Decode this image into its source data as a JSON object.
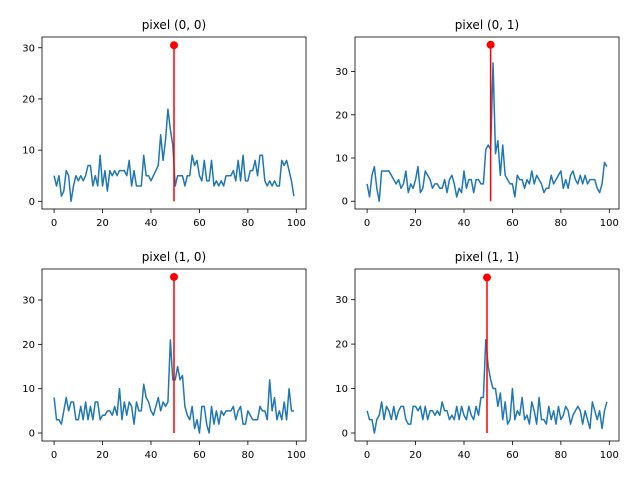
{
  "chart_data": [
    {
      "type": "line",
      "title": "pixel (0, 0)",
      "xlim": [
        -5,
        104
      ],
      "ylim": [
        -1.5,
        32.1
      ],
      "xticks": [
        0,
        20,
        40,
        60,
        80,
        100
      ],
      "yticks": [
        0,
        10,
        20,
        30
      ],
      "series": [
        {
          "color": "#1f77b4",
          "x": [
            0,
            1,
            2,
            3,
            4,
            5,
            6,
            7,
            8,
            9,
            10,
            11,
            12,
            13,
            14,
            15,
            16,
            17,
            18,
            19,
            20,
            21,
            22,
            23,
            24,
            25,
            26,
            27,
            28,
            29,
            30,
            31,
            32,
            33,
            34,
            35,
            36,
            37,
            38,
            39,
            40,
            41,
            42,
            43,
            44,
            45,
            46,
            47,
            48,
            49,
            50,
            51,
            52,
            53,
            54,
            55,
            56,
            57,
            58,
            59,
            60,
            61,
            62,
            63,
            64,
            65,
            66,
            67,
            68,
            69,
            70,
            71,
            72,
            73,
            74,
            75,
            76,
            77,
            78,
            79,
            80,
            81,
            82,
            83,
            84,
            85,
            86,
            87,
            88,
            89,
            90,
            91,
            92,
            93,
            94,
            95,
            96,
            97,
            98,
            99
          ],
          "values": [
            5,
            3,
            5,
            1,
            2,
            6,
            5,
            0,
            3,
            5,
            4,
            5,
            4,
            5,
            7,
            7,
            3,
            5,
            3,
            9,
            3,
            6,
            2,
            6,
            5,
            6,
            5,
            6,
            6,
            6,
            5,
            8,
            3,
            6,
            3,
            3,
            3,
            9,
            5,
            5,
            4,
            5,
            6,
            7,
            13,
            8,
            12,
            18,
            14,
            11,
            3,
            5,
            5,
            5,
            3,
            5,
            5,
            9,
            7,
            8,
            5,
            4,
            8,
            4,
            4,
            8,
            3,
            4,
            3,
            4,
            3,
            5,
            5,
            5,
            6,
            4,
            8,
            4,
            9,
            4,
            4,
            6,
            6,
            8,
            5,
            9,
            9,
            4,
            3,
            4,
            3,
            4,
            3,
            3,
            8,
            7,
            8,
            6,
            4,
            1
          ]
        }
      ],
      "stem": {
        "x": 49.5,
        "y": 30.5,
        "color": "#ff0000"
      }
    },
    {
      "type": "line",
      "title": "pixel (0, 1)",
      "xlim": [
        -5,
        104
      ],
      "ylim": [
        -1.8,
        38.0
      ],
      "xticks": [
        0,
        20,
        40,
        60,
        80,
        100
      ],
      "yticks": [
        0,
        10,
        20,
        30
      ],
      "series": [
        {
          "color": "#1f77b4",
          "x": [
            0,
            1,
            2,
            3,
            4,
            5,
            6,
            7,
            8,
            9,
            10,
            11,
            12,
            13,
            14,
            15,
            16,
            17,
            18,
            19,
            20,
            21,
            22,
            23,
            24,
            25,
            26,
            27,
            28,
            29,
            30,
            31,
            32,
            33,
            34,
            35,
            36,
            37,
            38,
            39,
            40,
            41,
            42,
            43,
            44,
            45,
            46,
            47,
            48,
            49,
            50,
            51,
            52,
            53,
            54,
            55,
            56,
            57,
            58,
            59,
            60,
            61,
            62,
            63,
            64,
            65,
            66,
            67,
            68,
            69,
            70,
            71,
            72,
            73,
            74,
            75,
            76,
            77,
            78,
            79,
            80,
            81,
            82,
            83,
            84,
            85,
            86,
            87,
            88,
            89,
            90,
            91,
            92,
            93,
            94,
            95,
            96,
            97,
            98,
            99
          ],
          "values": [
            4,
            1,
            6,
            8,
            3,
            0,
            7,
            7,
            7,
            7,
            6,
            5,
            4,
            5,
            3,
            4,
            7,
            2,
            4,
            3,
            5,
            8,
            2,
            3,
            7,
            6,
            5,
            3,
            4,
            4,
            3,
            3,
            5,
            2,
            5,
            6,
            4,
            1,
            3,
            2,
            7,
            3,
            5,
            5,
            2,
            5,
            5,
            4,
            4,
            12,
            13,
            12,
            32,
            11,
            14,
            6,
            13,
            6,
            5,
            4,
            4,
            1,
            6,
            5,
            5,
            3,
            5,
            4,
            7,
            4,
            6,
            5,
            4,
            2,
            3,
            3,
            6,
            4,
            5,
            6,
            7,
            3,
            5,
            3,
            6,
            7,
            5,
            4,
            6,
            4,
            6,
            4,
            5,
            5,
            5,
            3,
            2,
            4,
            9,
            8
          ]
        }
      ],
      "stem": {
        "x": 51,
        "y": 36.2,
        "color": "#ff0000"
      }
    },
    {
      "type": "line",
      "title": "pixel (1, 0)",
      "xlim": [
        -5,
        104
      ],
      "ylim": [
        -1.8,
        37.0
      ],
      "xticks": [
        0,
        20,
        40,
        60,
        80,
        100
      ],
      "yticks": [
        0,
        10,
        20,
        30
      ],
      "series": [
        {
          "color": "#1f77b4",
          "x": [
            0,
            1,
            2,
            3,
            4,
            5,
            6,
            7,
            8,
            9,
            10,
            11,
            12,
            13,
            14,
            15,
            16,
            17,
            18,
            19,
            20,
            21,
            22,
            23,
            24,
            25,
            26,
            27,
            28,
            29,
            30,
            31,
            32,
            33,
            34,
            35,
            36,
            37,
            38,
            39,
            40,
            41,
            42,
            43,
            44,
            45,
            46,
            47,
            48,
            49,
            50,
            51,
            52,
            53,
            54,
            55,
            56,
            57,
            58,
            59,
            60,
            61,
            62,
            63,
            64,
            65,
            66,
            67,
            68,
            69,
            70,
            71,
            72,
            73,
            74,
            75,
            76,
            77,
            78,
            79,
            80,
            81,
            82,
            83,
            84,
            85,
            86,
            87,
            88,
            89,
            90,
            91,
            92,
            93,
            94,
            95,
            96,
            97,
            98,
            99
          ],
          "values": [
            8,
            3,
            3,
            2,
            5,
            8,
            5,
            7,
            7,
            3,
            3,
            6,
            3,
            7,
            3,
            6,
            3,
            7,
            7,
            3,
            4,
            4,
            5,
            5,
            4,
            6,
            4,
            10,
            3,
            7,
            4,
            7,
            6,
            2,
            7,
            5,
            5,
            11,
            8,
            7,
            5,
            4,
            6,
            8,
            5,
            7,
            6,
            7,
            21,
            12,
            12,
            15,
            12,
            13,
            6,
            4,
            3,
            6,
            1,
            3,
            0,
            6,
            6,
            2,
            0,
            6,
            2,
            5,
            2,
            5,
            4,
            5,
            5,
            5,
            6,
            3,
            5,
            6,
            2,
            2,
            5,
            4,
            3,
            3,
            3,
            6,
            5,
            5,
            3,
            12,
            5,
            8,
            3,
            5,
            3,
            7,
            3,
            10,
            5,
            5
          ]
        }
      ],
      "stem": {
        "x": 49.5,
        "y": 35.2,
        "color": "#ff0000"
      }
    },
    {
      "type": "line",
      "title": "pixel (1, 1)",
      "xlim": [
        -5,
        104
      ],
      "ylim": [
        -1.8,
        36.9
      ],
      "xticks": [
        0,
        20,
        40,
        60,
        80,
        100
      ],
      "yticks": [
        0,
        10,
        20,
        30
      ],
      "series": [
        {
          "color": "#1f77b4",
          "x": [
            0,
            1,
            2,
            3,
            4,
            5,
            6,
            7,
            8,
            9,
            10,
            11,
            12,
            13,
            14,
            15,
            16,
            17,
            18,
            19,
            20,
            21,
            22,
            23,
            24,
            25,
            26,
            27,
            28,
            29,
            30,
            31,
            32,
            33,
            34,
            35,
            36,
            37,
            38,
            39,
            40,
            41,
            42,
            43,
            44,
            45,
            46,
            47,
            48,
            49,
            50,
            51,
            52,
            53,
            54,
            55,
            56,
            57,
            58,
            59,
            60,
            61,
            62,
            63,
            64,
            65,
            66,
            67,
            68,
            69,
            70,
            71,
            72,
            73,
            74,
            75,
            76,
            77,
            78,
            79,
            80,
            81,
            82,
            83,
            84,
            85,
            86,
            87,
            88,
            89,
            90,
            91,
            92,
            93,
            94,
            95,
            96,
            97,
            98,
            99
          ],
          "values": [
            5,
            3,
            3,
            0,
            3,
            4,
            7,
            3,
            6,
            5,
            3,
            6,
            3,
            5,
            6,
            6,
            3,
            2,
            2,
            6,
            6,
            5,
            6,
            3,
            6,
            3,
            5,
            5,
            4,
            5,
            4,
            7,
            5,
            5,
            3,
            4,
            3,
            6,
            3,
            6,
            4,
            3,
            6,
            4,
            3,
            6,
            4,
            8,
            8,
            21,
            15,
            12,
            10,
            10,
            6,
            9,
            3,
            7,
            2,
            3,
            10,
            3,
            5,
            4,
            8,
            3,
            4,
            2,
            7,
            5,
            2,
            8,
            3,
            3,
            2,
            6,
            3,
            5,
            2,
            6,
            3,
            4,
            6,
            5,
            2,
            4,
            5,
            6,
            5,
            2,
            5,
            3,
            1,
            7,
            5,
            3,
            5,
            1,
            5,
            7
          ]
        }
      ],
      "stem": {
        "x": 49.5,
        "y": 35.0,
        "color": "#ff0000"
      }
    }
  ]
}
